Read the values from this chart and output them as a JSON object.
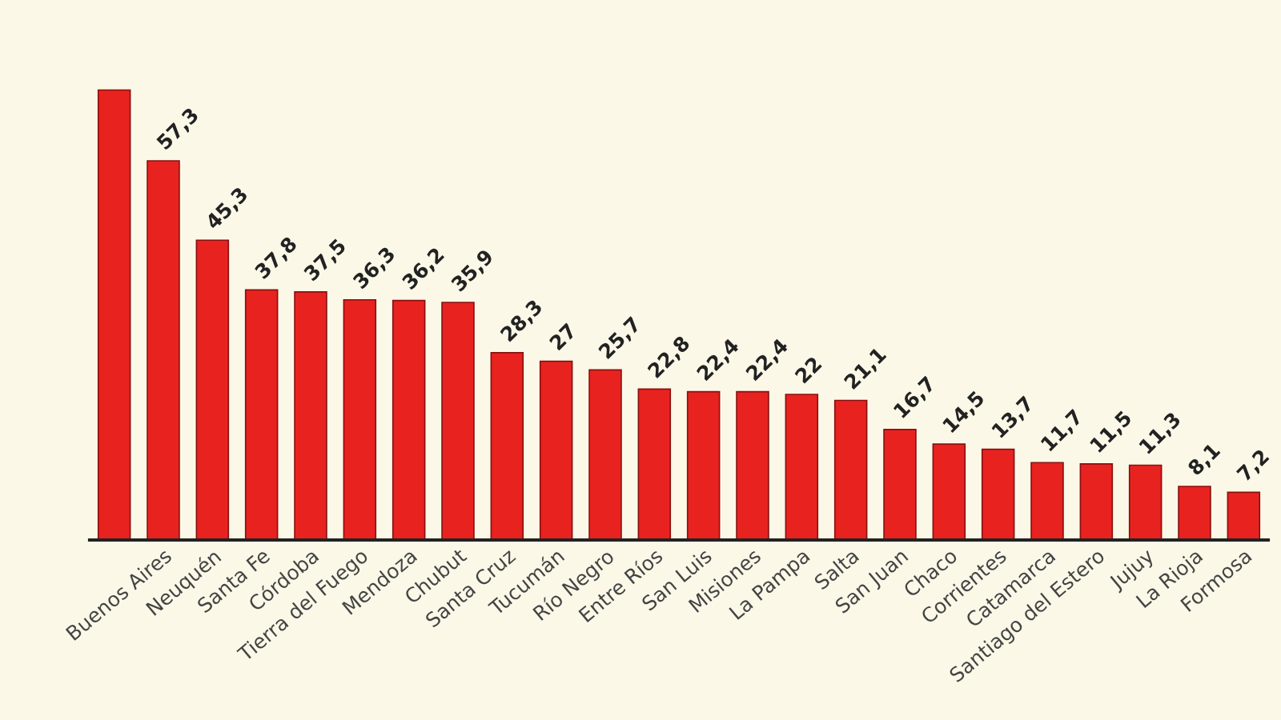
{
  "chart_data": {
    "type": "bar",
    "categories": [
      null,
      "Buenos Aires",
      "Neuquén",
      "Santa Fe",
      "Córdoba",
      "Tierra del Fuego",
      "Mendoza",
      "Chubut",
      "Santa Cruz",
      "Tucumán",
      "Río Negro",
      "Entre Ríos",
      "San Luis",
      "Misiones",
      "La Pampa",
      "Salta",
      "San Juan",
      "Chaco",
      "Corrientes",
      "Catamarca",
      "Santiago del Estero",
      "Jujuy",
      "La Rioja",
      "Formosa"
    ],
    "values": [
      68,
      57.3,
      45.3,
      37.8,
      37.5,
      36.3,
      36.2,
      35.9,
      28.3,
      27,
      25.7,
      22.8,
      22.4,
      22.4,
      22,
      21.1,
      16.7,
      14.5,
      13.7,
      11.7,
      11.5,
      11.3,
      8.1,
      7.2
    ],
    "value_labels": [
      null,
      "57,3",
      "45,3",
      "37,8",
      "37,5",
      "36,3",
      "36,2",
      "35,9",
      "28,3",
      "27",
      "25,7",
      "22,8",
      "22,4",
      "22,4",
      "22",
      "21,1",
      "16,7",
      "14,5",
      "13,7",
      "11,7",
      "11,5",
      "11,3",
      "8,1",
      "7,2"
    ],
    "color": "#e8231f",
    "grid": false,
    "legend": false
  }
}
